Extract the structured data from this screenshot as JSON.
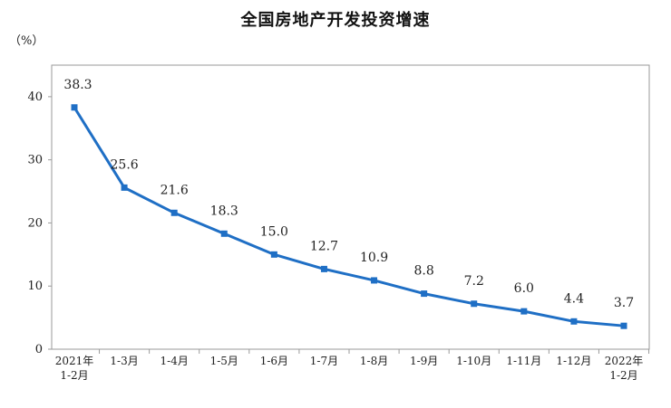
{
  "chart_data": {
    "type": "line",
    "title": "全国房地产开发投资增速",
    "unit_label": "（%）",
    "categories": [
      [
        "2021年",
        "1-2月"
      ],
      [
        "1-3月"
      ],
      [
        "1-4月"
      ],
      [
        "1-5月"
      ],
      [
        "1-6月"
      ],
      [
        "1-7月"
      ],
      [
        "1-8月"
      ],
      [
        "1-9月"
      ],
      [
        "1-10月"
      ],
      [
        "1-11月"
      ],
      [
        "1-12月"
      ],
      [
        "2022年",
        "1-2月"
      ]
    ],
    "series": [
      {
        "values": [
          38.3,
          25.6,
          21.6,
          18.3,
          15.0,
          12.7,
          10.9,
          8.8,
          7.2,
          6.0,
          4.4,
          3.7
        ],
        "labels": [
          "38.3",
          "25.6",
          "21.6",
          "18.3",
          "15.0",
          "12.7",
          "10.9",
          "8.8",
          "7.2",
          "6.0",
          "4.4",
          "3.7"
        ]
      }
    ],
    "ylim": [
      0,
      45
    ],
    "yticks": [
      0,
      10,
      20,
      30,
      40
    ],
    "grid": false,
    "line_color": "#1f6fc5",
    "axis_color": "#9a9a9a"
  }
}
